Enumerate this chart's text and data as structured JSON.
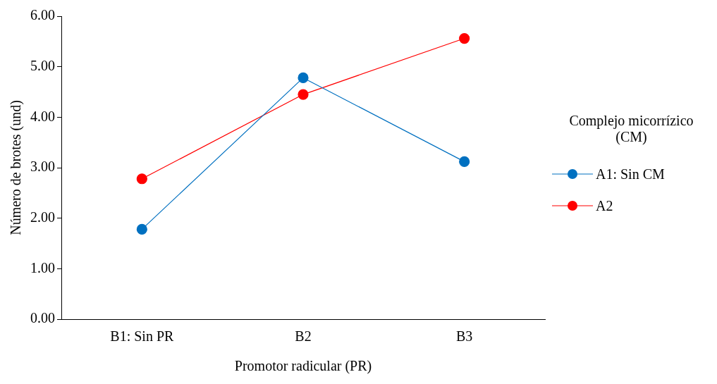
{
  "chart_data": {
    "type": "line",
    "xlabel": "Promotor radicular (PR)",
    "ylabel": "Número de brotes (und)",
    "legend_title": "Complejo micorrízico (CM)",
    "categories": [
      "B1: Sin PR",
      "B2",
      "B3"
    ],
    "series": [
      {
        "name": "A1: Sin CM",
        "color": "#0070c0",
        "values": [
          1.78,
          4.78,
          3.12
        ]
      },
      {
        "name": "A2",
        "color": "#ff0000",
        "values": [
          2.78,
          4.45,
          5.56
        ]
      }
    ],
    "ylim": [
      0,
      6
    ],
    "yticks": [
      {
        "value": 0,
        "label": "0.00"
      },
      {
        "value": 1,
        "label": "1.00"
      },
      {
        "value": 2,
        "label": "2.00"
      },
      {
        "value": 3,
        "label": "3.00"
      },
      {
        "value": 4,
        "label": "4.00"
      },
      {
        "value": 5,
        "label": "5.00"
      },
      {
        "value": 6,
        "label": "6.00"
      }
    ],
    "grid": false,
    "legend": "right",
    "marker": "circle",
    "line_style": "solid"
  }
}
